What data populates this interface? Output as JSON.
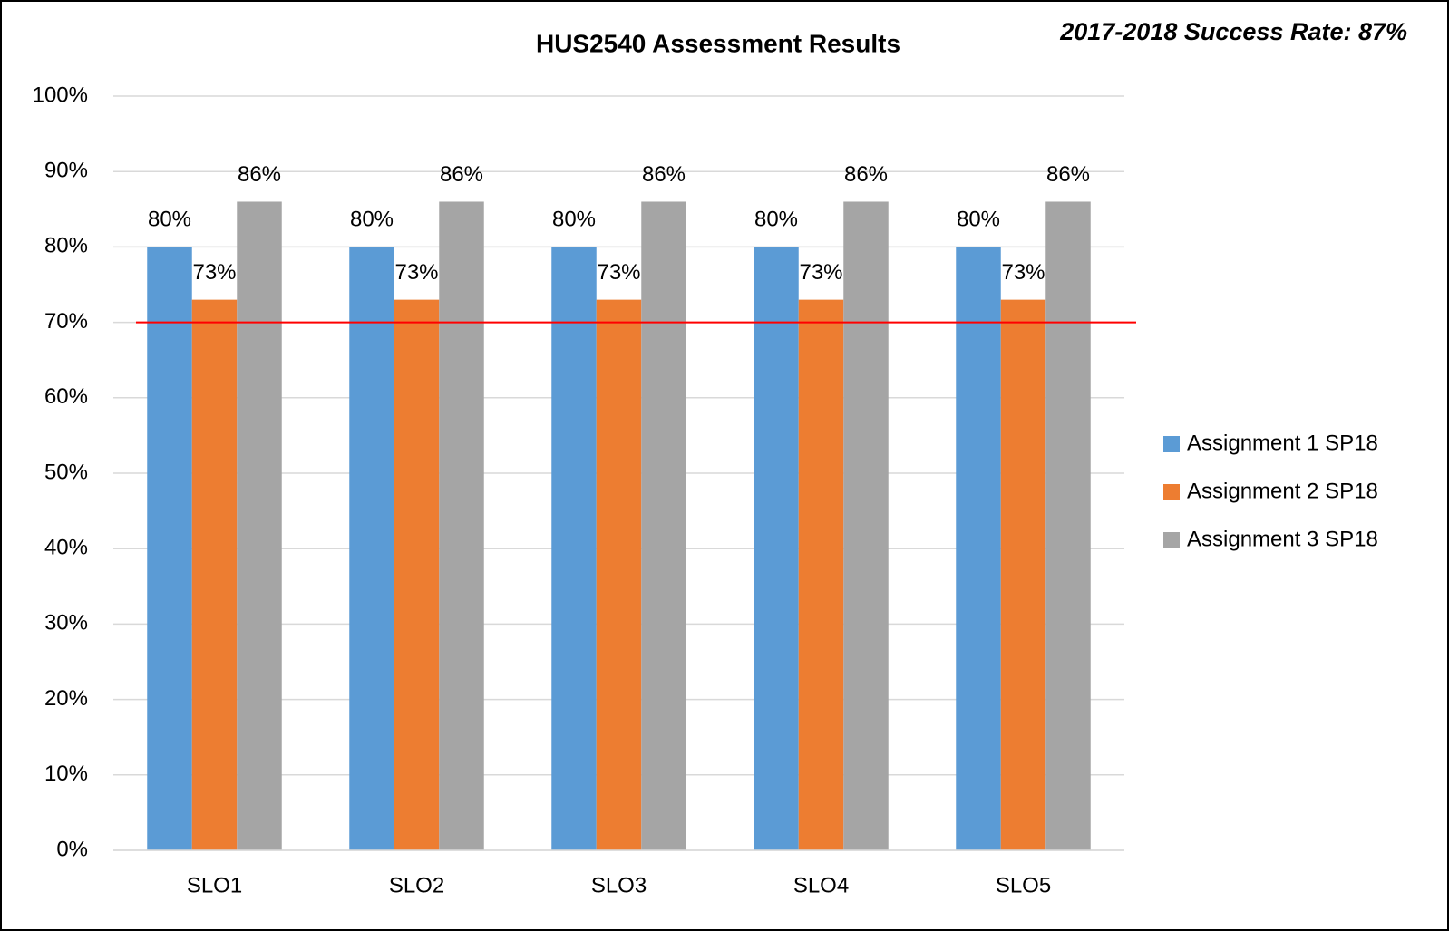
{
  "chart_data": {
    "type": "bar",
    "title": "HUS2540 Assessment Results",
    "annotation": "2017-2018 Success Rate: 87%",
    "categories": [
      "SLO1",
      "SLO2",
      "SLO3",
      "SLO4",
      "SLO5"
    ],
    "series": [
      {
        "name": "Assignment 1 SP18",
        "color": "#5b9bd5",
        "values": [
          80,
          80,
          80,
          80,
          80
        ],
        "value_labels": [
          "80%",
          "80%",
          "80%",
          "80%",
          "80%"
        ]
      },
      {
        "name": "Assignment 2 SP18",
        "color": "#ed7d31",
        "values": [
          73,
          73,
          73,
          73,
          73
        ],
        "value_labels": [
          "73%",
          "73%",
          "73%",
          "73%",
          "73%"
        ]
      },
      {
        "name": "Assignment 3 SP18",
        "color": "#a5a5a5",
        "values": [
          86,
          86,
          86,
          86,
          86
        ],
        "value_labels": [
          "86%",
          "86%",
          "86%",
          "86%",
          "86%"
        ]
      }
    ],
    "reference_line": {
      "value": 70,
      "color": "#ff0000"
    },
    "ylim": [
      0,
      100
    ],
    "yticks": [
      {
        "value": 0,
        "label": "0%"
      },
      {
        "value": 10,
        "label": "10%"
      },
      {
        "value": 20,
        "label": "20%"
      },
      {
        "value": 30,
        "label": "30%"
      },
      {
        "value": 40,
        "label": "40%"
      },
      {
        "value": 50,
        "label": "50%"
      },
      {
        "value": 60,
        "label": "60%"
      },
      {
        "value": 70,
        "label": "70%"
      },
      {
        "value": 80,
        "label": "80%"
      },
      {
        "value": 90,
        "label": "90%"
      },
      {
        "value": 100,
        "label": "100%"
      }
    ],
    "grid": true,
    "legend": "right"
  }
}
